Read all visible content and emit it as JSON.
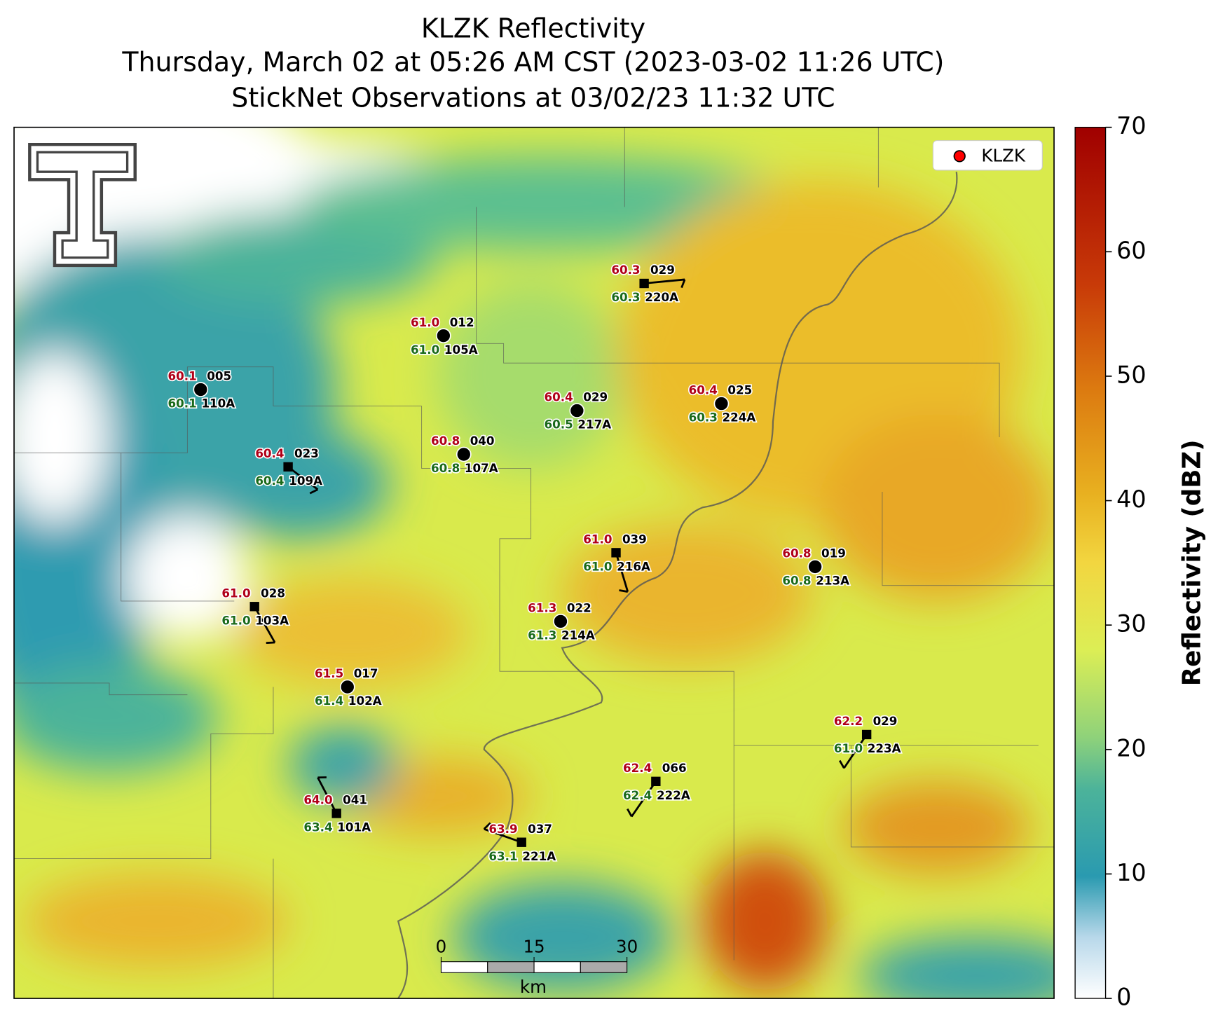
{
  "header": {
    "title": "KLZK Reflectivity",
    "subtitle": "Thursday, March 02 at 05:26 AM CST (2023-03-02 11:26 UTC)",
    "observations": "StickNet Observations at 03/02/23 11:32 UTC"
  },
  "legend": {
    "label": "KLZK",
    "color": "#ff0000"
  },
  "colorbar": {
    "label": "Reflectivity (dBZ)",
    "lim": [
      0,
      70
    ],
    "ticks": [
      0,
      10,
      20,
      30,
      40,
      50,
      60,
      70
    ]
  },
  "scale_bar": {
    "ticks": [
      0,
      15,
      30
    ],
    "unit": "km"
  },
  "stations": [
    {
      "id": "220A",
      "code": "029",
      "temperature": "60.3",
      "dewpoint": "60.3"
    },
    {
      "id": "105A",
      "code": "012",
      "temperature": "61.0",
      "dewpoint": "61.0"
    },
    {
      "id": "110A",
      "code": "005",
      "temperature": "60.1",
      "dewpoint": "60.1"
    },
    {
      "id": "217A",
      "code": "029",
      "temperature": "60.4",
      "dewpoint": "60.5"
    },
    {
      "id": "224A",
      "code": "025",
      "temperature": "60.4",
      "dewpoint": "60.3"
    },
    {
      "id": "107A",
      "code": "040",
      "temperature": "60.8",
      "dewpoint": "60.8"
    },
    {
      "id": "109A",
      "code": "023",
      "temperature": "60.4",
      "dewpoint": "60.4"
    },
    {
      "id": "216A",
      "code": "039",
      "temperature": "61.0",
      "dewpoint": "61.0"
    },
    {
      "id": "213A",
      "code": "019",
      "temperature": "60.8",
      "dewpoint": "60.8"
    },
    {
      "id": "103A",
      "code": "028",
      "temperature": "61.0",
      "dewpoint": "61.0"
    },
    {
      "id": "214A",
      "code": "022",
      "temperature": "61.3",
      "dewpoint": "61.3"
    },
    {
      "id": "102A",
      "code": "017",
      "temperature": "61.5",
      "dewpoint": "61.4"
    },
    {
      "id": "223A",
      "code": "029",
      "temperature": "62.2",
      "dewpoint": "61.0"
    },
    {
      "id": "222A",
      "code": "066",
      "temperature": "62.4",
      "dewpoint": "62.4"
    },
    {
      "id": "101A",
      "code": "041",
      "temperature": "64.0",
      "dewpoint": "63.4"
    },
    {
      "id": "221A",
      "code": "037",
      "temperature": "63.9",
      "dewpoint": "63.1"
    }
  ]
}
